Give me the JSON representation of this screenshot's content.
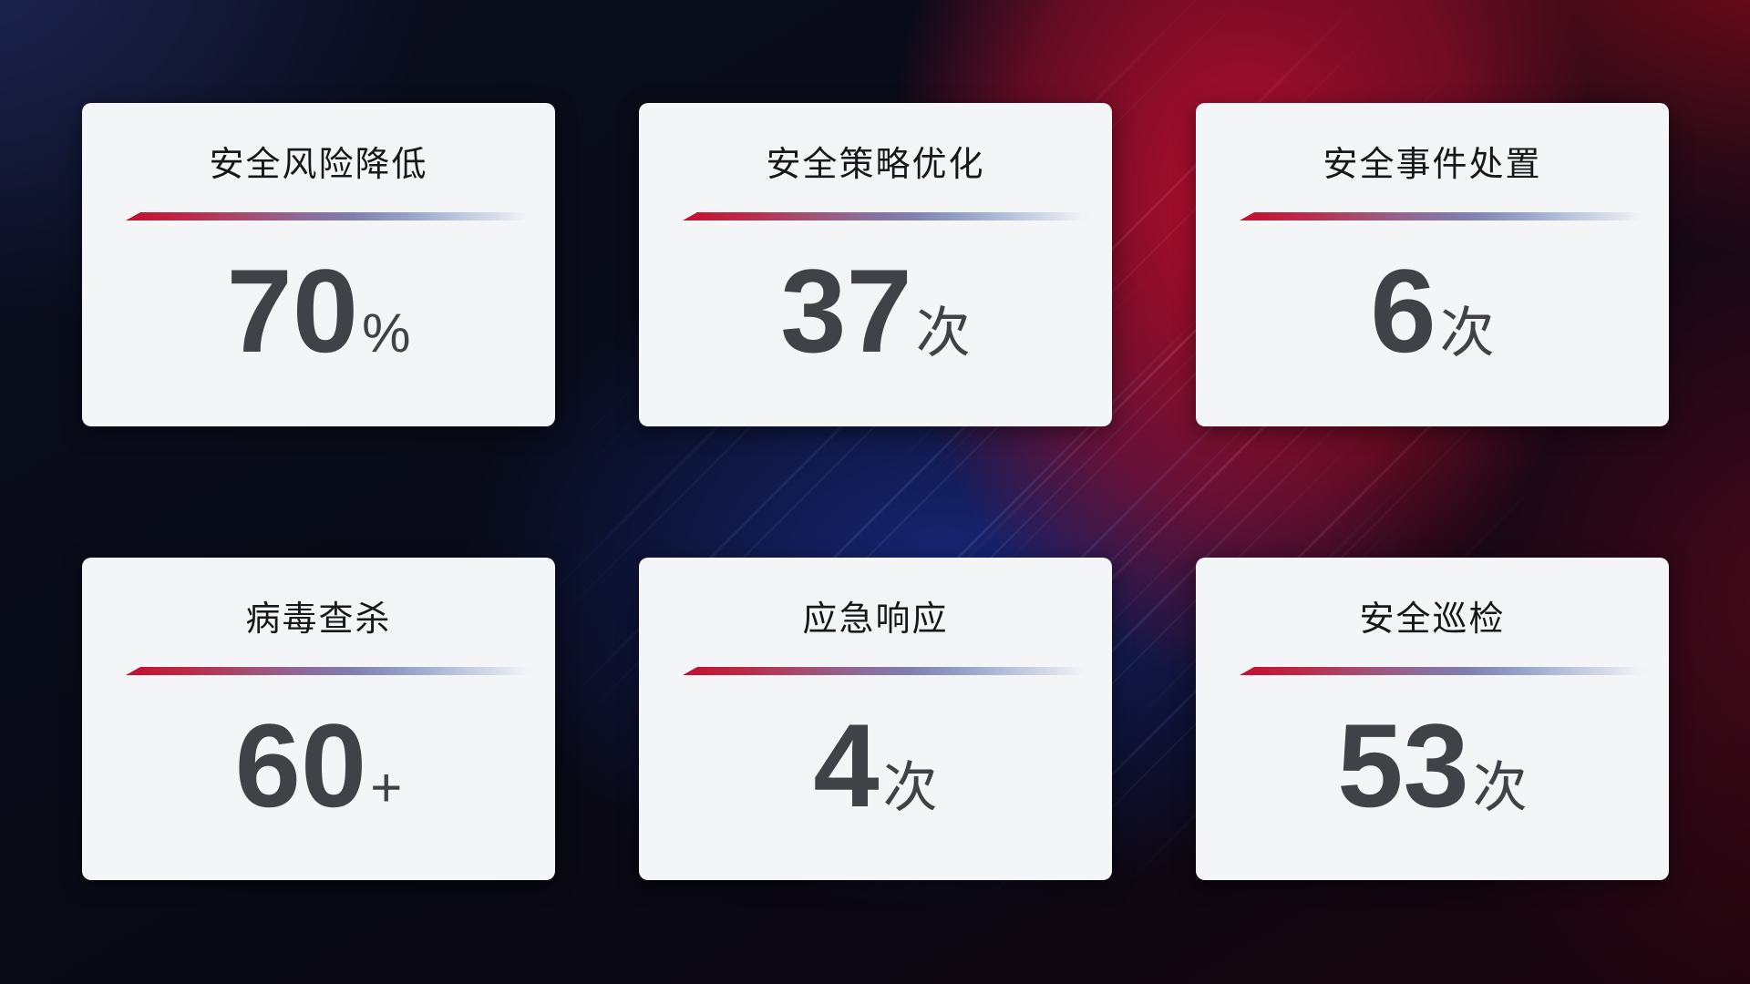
{
  "dashboard": {
    "cards": [
      {
        "title": "安全风险降低",
        "value": "70",
        "suffix": "%"
      },
      {
        "title": "安全策略优化",
        "value": "37",
        "suffix": "次"
      },
      {
        "title": "安全事件处置",
        "value": "6",
        "suffix": "次"
      },
      {
        "title": "病毒查杀",
        "value": "60",
        "suffix": "+"
      },
      {
        "title": "应急响应",
        "value": "4",
        "suffix": "次"
      },
      {
        "title": "安全巡检",
        "value": "53",
        "suffix": "次"
      }
    ],
    "colors": {
      "card_background": "#f4f5f7",
      "title_text": "#17181a",
      "value_text": "#404248",
      "divider_gradient_start": "#c50e2f",
      "divider_gradient_mid": "#7f7fae",
      "divider_gradient_end": "#d9dfe9",
      "background_dark_navy": "#0b0e1e",
      "background_blue_glow": "#1d2f8e",
      "background_bright_red": "#a80f2c",
      "background_dark_red": "#7c0d1c"
    }
  }
}
